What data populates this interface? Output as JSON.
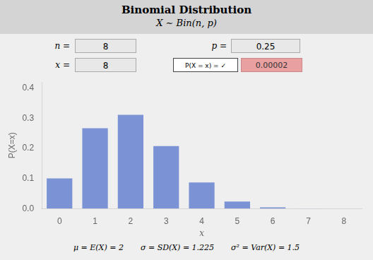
{
  "chart_data": {
    "type": "bar",
    "title": "Binomial Distribution",
    "subtitle": "X ∼ Bin(n, p)",
    "categories": [
      "0",
      "1",
      "2",
      "3",
      "4",
      "5",
      "6",
      "7",
      "8"
    ],
    "values": [
      0.10011,
      0.26697,
      0.31146,
      0.20764,
      0.08651,
      0.0231,
      0.00385,
      0.00037,
      2e-05
    ],
    "color": "#7b93d4",
    "xlabel": "x",
    "ylabel": "P(X=x)",
    "ylim": [
      0,
      0.42
    ],
    "yticks": [
      {
        "value": 0,
        "label": "0.0"
      },
      0.1,
      0.2,
      0.3,
      0.4
    ],
    "grid": false,
    "annotations": [
      "n =",
      "8",
      "p =",
      "0.25",
      "x =",
      "8",
      "P(X = x) = ✓",
      "0.00002",
      "μ = E(X) = 2",
      "σ = SD(X) = 1.225",
      "σ² = Var(X) = 1.5"
    ]
  }
}
